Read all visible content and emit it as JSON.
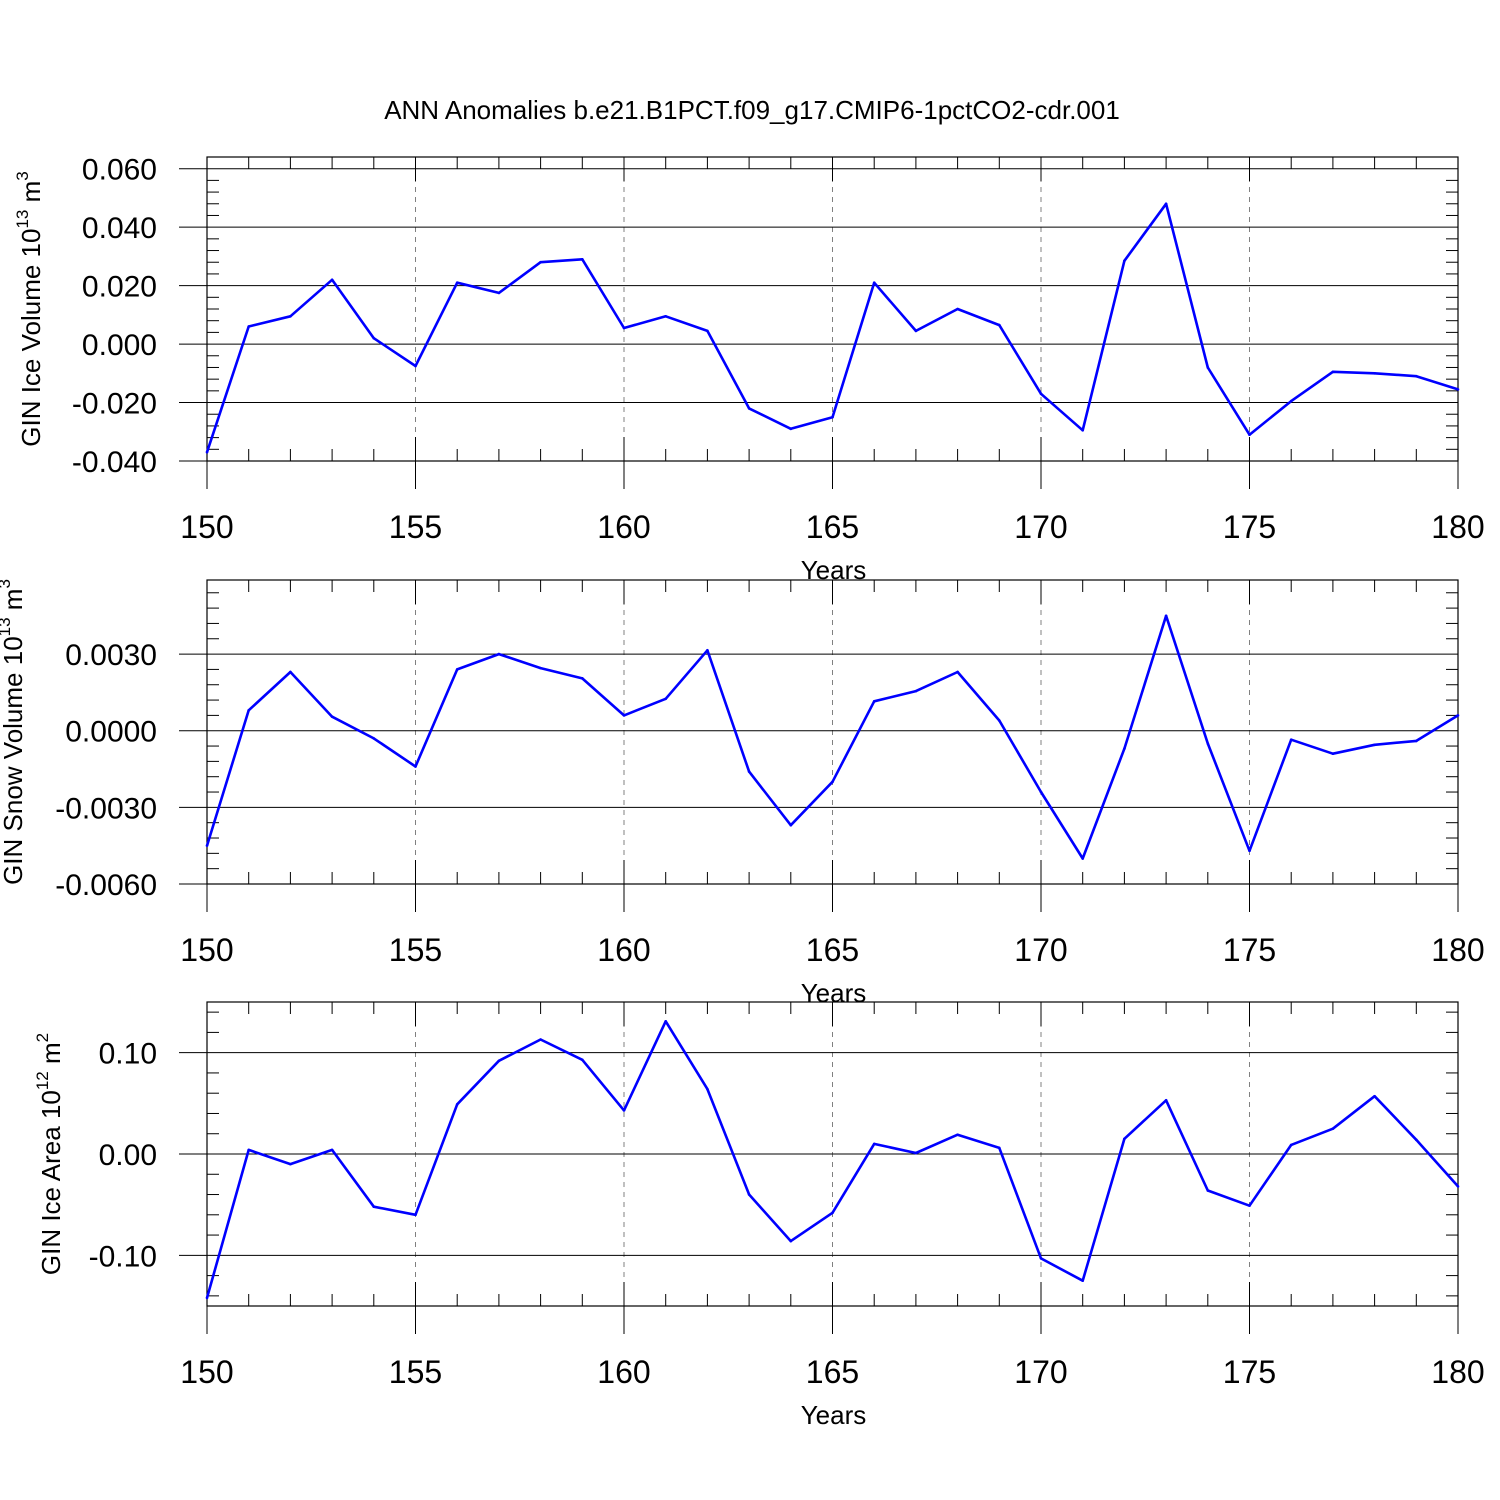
{
  "title": "ANN Anomalies b.e21.B1PCT.f09_g17.CMIP6-1pctCO2-cdr.001",
  "colors": {
    "line": "#0000ff",
    "axis": "#000000",
    "grid": "#808080"
  },
  "chart_data": [
    {
      "type": "line",
      "ylabel_parts": [
        "GIN Ice Volume 10",
        "13",
        " m",
        "3"
      ],
      "xlabel": "Years",
      "xlim": [
        150,
        180
      ],
      "ylim": [
        -0.04,
        0.064
      ],
      "xticks": [
        "150",
        "155",
        "160",
        "165",
        "170",
        "175",
        "180"
      ],
      "yticks": [
        {
          "v": 0.06,
          "label": "0.060"
        },
        {
          "v": 0.04,
          "label": "0.040"
        },
        {
          "v": 0.02,
          "label": "0.020"
        },
        {
          "v": 0.0,
          "label": "0.000"
        },
        {
          "v": -0.02,
          "label": "-0.020"
        },
        {
          "v": -0.04,
          "label": "-0.040"
        }
      ],
      "grid_x": [
        155,
        160,
        165,
        170,
        175
      ],
      "x": [
        150,
        151,
        152,
        153,
        154,
        155,
        156,
        157,
        158,
        159,
        160,
        161,
        162,
        163,
        164,
        165,
        166,
        167,
        168,
        169,
        170,
        171,
        172,
        173,
        174,
        175,
        176,
        177,
        178,
        179,
        180
      ],
      "values": [
        -0.037,
        0.006,
        0.0095,
        0.022,
        0.002,
        -0.0075,
        0.021,
        0.0175,
        0.028,
        0.029,
        0.0055,
        0.0095,
        0.0045,
        -0.022,
        -0.029,
        -0.025,
        0.021,
        0.0045,
        0.012,
        0.0065,
        -0.017,
        -0.0295,
        0.0285,
        0.048,
        -0.008,
        -0.031,
        -0.0195,
        -0.0095,
        -0.01,
        -0.011,
        -0.0155
      ]
    },
    {
      "type": "line",
      "ylabel_parts": [
        "GIN Snow Volume 10",
        "13",
        " m",
        "3"
      ],
      "xlabel": "Years",
      "xlim": [
        150,
        180
      ],
      "ylim": [
        -0.006,
        0.0059
      ],
      "xticks": [
        "150",
        "155",
        "160",
        "165",
        "170",
        "175",
        "180"
      ],
      "yticks": [
        {
          "v": 0.003,
          "label": "0.0030"
        },
        {
          "v": 0.0,
          "label": "0.0000"
        },
        {
          "v": -0.003,
          "label": "-0.0030"
        },
        {
          "v": -0.006,
          "label": "-0.0060"
        }
      ],
      "grid_x": [
        155,
        160,
        165,
        170,
        175
      ],
      "x": [
        150,
        151,
        152,
        153,
        154,
        155,
        156,
        157,
        158,
        159,
        160,
        161,
        162,
        163,
        164,
        165,
        166,
        167,
        168,
        169,
        170,
        171,
        172,
        173,
        174,
        175,
        176,
        177,
        178,
        179,
        180
      ],
      "values": [
        -0.0045,
        0.0008,
        0.0023,
        0.00055,
        -0.0003,
        -0.0014,
        0.0024,
        0.003,
        0.00245,
        0.00205,
        0.0006,
        0.00125,
        0.00315,
        -0.0016,
        -0.0037,
        -0.002,
        0.00115,
        0.00155,
        0.0023,
        0.0004,
        -0.0024,
        -0.005,
        -0.0007,
        0.0045,
        -0.0005,
        -0.0047,
        -0.00035,
        -0.0009,
        -0.00055,
        -0.0004,
        0.0006
      ]
    },
    {
      "type": "line",
      "ylabel_parts": [
        "GIN Ice Area 10",
        "12",
        " m",
        "2"
      ],
      "xlabel": "Years",
      "xlim": [
        150,
        180
      ],
      "ylim": [
        -0.15,
        0.15
      ],
      "xticks": [
        "150",
        "155",
        "160",
        "165",
        "170",
        "175",
        "180"
      ],
      "yticks": [
        {
          "v": 0.1,
          "label": "0.10"
        },
        {
          "v": 0.0,
          "label": "0.00"
        },
        {
          "v": -0.1,
          "label": "-0.10"
        }
      ],
      "grid_x": [
        155,
        160,
        165,
        170,
        175
      ],
      "x": [
        150,
        151,
        152,
        153,
        154,
        155,
        156,
        157,
        158,
        159,
        160,
        161,
        162,
        163,
        164,
        165,
        166,
        167,
        168,
        169,
        170,
        171,
        172,
        173,
        174,
        175,
        176,
        177,
        178,
        179,
        180
      ],
      "values": [
        -0.142,
        0.004,
        -0.01,
        0.004,
        -0.052,
        -0.06,
        0.049,
        0.092,
        0.113,
        0.093,
        0.043,
        0.131,
        0.064,
        -0.04,
        -0.086,
        -0.058,
        0.01,
        0.001,
        0.019,
        0.006,
        -0.103,
        -0.125,
        0.015,
        0.053,
        -0.036,
        -0.051,
        0.009,
        0.025,
        0.057,
        0.014,
        -0.032
      ]
    }
  ]
}
